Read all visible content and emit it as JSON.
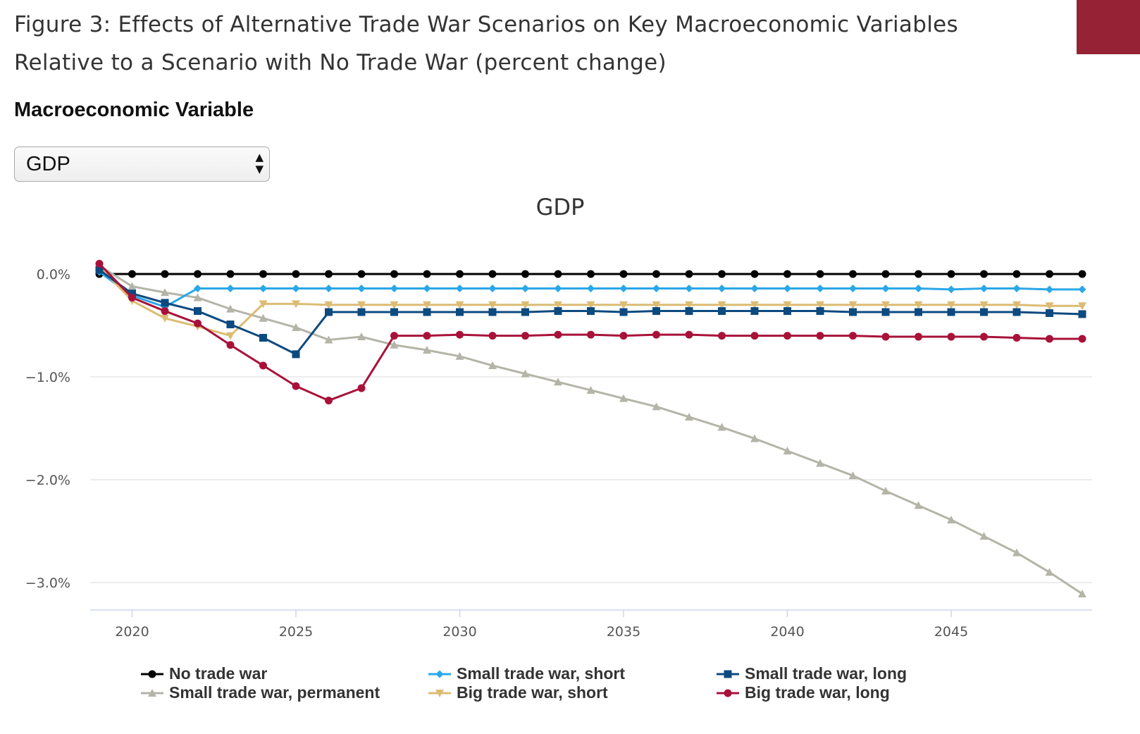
{
  "figure_title_line1": "Figure 3: Effects of Alternative Trade War Scenarios on Key Macroeconomic Variables",
  "figure_title_line2": "Relative to a Scenario with No Trade War (percent change)",
  "brand_color": "#962235",
  "control": {
    "label": "Macroeconomic Variable",
    "selected": "GDP"
  },
  "chart_data": {
    "type": "line",
    "title": "GDP",
    "xlabel": "",
    "ylabel": "",
    "x": [
      2019,
      2020,
      2021,
      2022,
      2023,
      2024,
      2025,
      2026,
      2027,
      2028,
      2029,
      2030,
      2031,
      2032,
      2033,
      2034,
      2035,
      2036,
      2037,
      2038,
      2039,
      2040,
      2041,
      2042,
      2043,
      2044,
      2045,
      2046,
      2047,
      2048,
      2049
    ],
    "xticks": [
      "2020",
      "2025",
      "2030",
      "2035",
      "2040",
      "2045"
    ],
    "xtick_values": [
      2020,
      2025,
      2030,
      2035,
      2040,
      2045
    ],
    "yticks": [
      "0.0%",
      "−1.0%",
      "−2.0%",
      "−3.0%"
    ],
    "ytick_values": [
      0,
      -1,
      -2,
      -3
    ],
    "ylim": [
      -3.26,
      0.15
    ],
    "grid": "horizontal",
    "legend_position": "bottom",
    "series": [
      {
        "name": "No trade war",
        "color": "#000000",
        "marker": "circle",
        "values": [
          0,
          0,
          0,
          0,
          0,
          0,
          0,
          0,
          0,
          0,
          0,
          0,
          0,
          0,
          0,
          0,
          0,
          0,
          0,
          0,
          0,
          0,
          0,
          0,
          0,
          0,
          0,
          0,
          0,
          0,
          0
        ]
      },
      {
        "name": "Small trade war, short",
        "color": "#2aa7e8",
        "marker": "diamond",
        "values": [
          0.02,
          -0.21,
          -0.32,
          -0.14,
          -0.14,
          -0.14,
          -0.14,
          -0.14,
          -0.14,
          -0.14,
          -0.14,
          -0.14,
          -0.14,
          -0.14,
          -0.14,
          -0.14,
          -0.14,
          -0.14,
          -0.14,
          -0.14,
          -0.14,
          -0.14,
          -0.14,
          -0.14,
          -0.14,
          -0.14,
          -0.15,
          -0.14,
          -0.14,
          -0.15,
          -0.15
        ]
      },
      {
        "name": "Small trade war, long",
        "color": "#0c4a80",
        "marker": "square",
        "values": [
          0.04,
          -0.19,
          -0.28,
          -0.36,
          -0.49,
          -0.62,
          -0.78,
          -0.37,
          -0.37,
          -0.37,
          -0.37,
          -0.37,
          -0.37,
          -0.37,
          -0.36,
          -0.36,
          -0.37,
          -0.36,
          -0.36,
          -0.36,
          -0.36,
          -0.36,
          -0.36,
          -0.37,
          -0.37,
          -0.37,
          -0.37,
          -0.37,
          -0.37,
          -0.38,
          -0.39
        ]
      },
      {
        "name": "Small trade war, permanent",
        "color": "#b4b4a8",
        "marker": "triangle",
        "values": [
          0.08,
          -0.12,
          -0.18,
          -0.23,
          -0.34,
          -0.43,
          -0.52,
          -0.64,
          -0.61,
          -0.69,
          -0.74,
          -0.8,
          -0.89,
          -0.97,
          -1.05,
          -1.13,
          -1.21,
          -1.29,
          -1.39,
          -1.49,
          -1.6,
          -1.72,
          -1.84,
          -1.96,
          -2.11,
          -2.25,
          -2.39,
          -2.55,
          -2.71,
          -2.9,
          -3.11
        ]
      },
      {
        "name": "Big trade war, short",
        "color": "#dcbc74",
        "marker": "triangle-down",
        "values": [
          0.07,
          -0.26,
          -0.43,
          -0.51,
          -0.6,
          -0.29,
          -0.29,
          -0.3,
          -0.3,
          -0.3,
          -0.3,
          -0.3,
          -0.3,
          -0.3,
          -0.3,
          -0.3,
          -0.3,
          -0.3,
          -0.3,
          -0.3,
          -0.3,
          -0.3,
          -0.3,
          -0.3,
          -0.3,
          -0.3,
          -0.3,
          -0.3,
          -0.3,
          -0.31,
          -0.31
        ]
      },
      {
        "name": "Big trade war, long",
        "color": "#a8123a",
        "marker": "circle",
        "values": [
          0.1,
          -0.23,
          -0.36,
          -0.48,
          -0.69,
          -0.89,
          -1.09,
          -1.23,
          -1.11,
          -0.6,
          -0.6,
          -0.59,
          -0.6,
          -0.6,
          -0.59,
          -0.59,
          -0.6,
          -0.59,
          -0.59,
          -0.6,
          -0.6,
          -0.6,
          -0.6,
          -0.6,
          -0.61,
          -0.61,
          -0.61,
          -0.61,
          -0.62,
          -0.63,
          -0.63
        ]
      }
    ]
  }
}
